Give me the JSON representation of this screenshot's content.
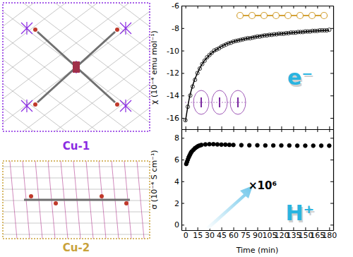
{
  "structures": [
    {
      "label": "Cu-1",
      "color": "#8a2be2"
    },
    {
      "label": "Cu-2",
      "color": "#c9a23a"
    }
  ],
  "chart_data": [
    {
      "type": "scatter",
      "ylabel": "χ (10⁻⁴ emu mol⁻¹)",
      "xlim": [
        -5,
        185
      ],
      "xticks": [
        0,
        15,
        30,
        45,
        60,
        75,
        90,
        105,
        120,
        135,
        150,
        165,
        180
      ],
      "ylim": [
        -17,
        -6
      ],
      "yticks": [
        -16,
        -14,
        -12,
        -10,
        -8,
        -6
      ],
      "tick_labels": "y",
      "annotations": [
        {
          "text": "e⁻",
          "color": "#2ab4e0"
        }
      ],
      "series": [
        {
          "type": "scatter",
          "marker": "open-circle",
          "color": "#000000",
          "x": [
            0,
            3,
            6,
            9,
            12,
            15,
            18,
            21,
            24,
            27,
            30,
            33,
            36,
            39,
            42,
            45,
            48,
            51,
            54,
            57,
            60,
            63,
            66,
            69,
            72,
            75,
            78,
            81,
            84,
            87,
            90,
            93,
            96,
            99,
            102,
            105,
            108,
            111,
            114,
            117,
            120,
            123,
            126,
            129,
            132,
            135,
            138,
            141,
            144,
            147,
            150,
            153,
            156,
            159,
            162,
            165,
            168,
            171,
            174,
            177,
            180
          ],
          "values": [
            -16.2,
            -15.0,
            -14.0,
            -13.2,
            -12.6,
            -12.0,
            -11.6,
            -11.2,
            -10.9,
            -10.6,
            -10.4,
            -10.2,
            -10.0,
            -9.9,
            -9.8,
            -9.65,
            -9.55,
            -9.45,
            -9.35,
            -9.3,
            -9.2,
            -9.15,
            -9.1,
            -9.05,
            -9.0,
            -8.95,
            -8.9,
            -8.9,
            -8.85,
            -8.8,
            -8.75,
            -8.75,
            -8.7,
            -8.65,
            -8.65,
            -8.6,
            -8.6,
            -8.55,
            -8.55,
            -8.5,
            -8.5,
            -8.5,
            -8.45,
            -8.45,
            -8.4,
            -8.4,
            -8.4,
            -8.35,
            -8.35,
            -8.35,
            -8.3,
            -8.3,
            -8.3,
            -8.25,
            -8.25,
            -8.25,
            -8.2,
            -8.2,
            -8.2,
            -8.2,
            -8.15
          ]
        },
        {
          "type": "line",
          "line_style": "solid",
          "color": "#000000",
          "x": [
            0,
            5,
            10,
            15,
            20,
            30,
            40,
            50,
            60,
            75,
            90,
            105,
            120,
            140,
            160,
            180
          ],
          "values": [
            -16.3,
            -14.2,
            -12.9,
            -12.0,
            -11.3,
            -10.4,
            -9.85,
            -9.45,
            -9.2,
            -8.95,
            -8.75,
            -8.6,
            -8.5,
            -8.38,
            -8.27,
            -8.18
          ]
        }
      ]
    },
    {
      "type": "scatter",
      "xlabel": "Time (min)",
      "ylabel": "σ (10⁻⁴ S cm⁻¹)",
      "xlim": [
        -5,
        185
      ],
      "xticks": [
        0,
        15,
        30,
        45,
        60,
        75,
        90,
        105,
        120,
        135,
        150,
        165,
        180
      ],
      "ylim": [
        -0.5,
        8.8
      ],
      "yticks": [
        0,
        2,
        4,
        6,
        8
      ],
      "annotations": [
        {
          "text": "×10⁶",
          "color": "#000000"
        },
        {
          "text": "H⁺",
          "color": "#2ab4e0"
        }
      ],
      "series": [
        {
          "type": "scatter",
          "marker": "filled-circle",
          "color": "#000000",
          "x": [
            1,
            2,
            3,
            4,
            5,
            6,
            7,
            8,
            10,
            12,
            14,
            16,
            18,
            20,
            25,
            30,
            35,
            40,
            45,
            50,
            55,
            60,
            70,
            80,
            90,
            100,
            110,
            120,
            130,
            140,
            150,
            160,
            170,
            180
          ],
          "values": [
            5.6,
            5.8,
            6.0,
            6.2,
            6.35,
            6.5,
            6.65,
            6.75,
            6.9,
            7.05,
            7.15,
            7.25,
            7.3,
            7.35,
            7.4,
            7.42,
            7.42,
            7.4,
            7.38,
            7.38,
            7.36,
            7.35,
            7.33,
            7.32,
            7.32,
            7.3,
            7.3,
            7.3,
            7.3,
            7.28,
            7.28,
            7.28,
            7.28,
            7.28
          ]
        }
      ]
    }
  ]
}
